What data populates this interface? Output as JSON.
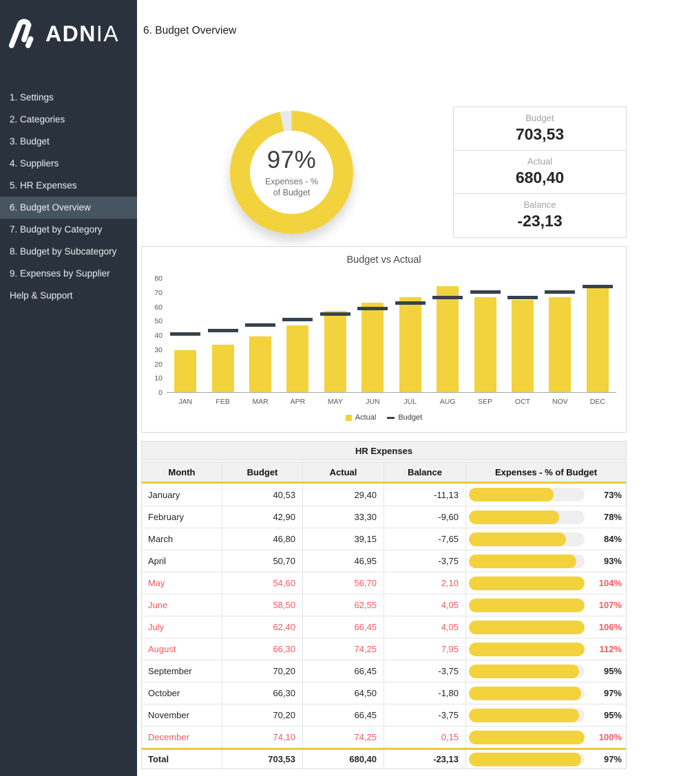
{
  "app": {
    "logo_bold": "ADN",
    "logo_light": "IA",
    "title": "6. Budget Overview"
  },
  "sidebar": {
    "items": [
      {
        "label": "1. Settings",
        "active": false
      },
      {
        "label": "2. Categories",
        "active": false
      },
      {
        "label": "3. Budget",
        "active": false
      },
      {
        "label": "4. Suppliers",
        "active": false
      },
      {
        "label": "5. HR Expenses",
        "active": false
      },
      {
        "label": "6. Budget Overview",
        "active": true
      },
      {
        "label": "7. Budget by Category",
        "active": false
      },
      {
        "label": "8. Budget by Subcategory",
        "active": false
      },
      {
        "label": "9. Expenses by Supplier",
        "active": false
      },
      {
        "label": "Help & Support",
        "active": false
      }
    ]
  },
  "donut": {
    "percent_label": "97%",
    "value": 97,
    "caption_line1": "Expenses - %",
    "caption_line2": "of Budget",
    "fill_color": "#F2D33D",
    "track_color": "#E9E9E9"
  },
  "kpis": [
    {
      "label": "Budget",
      "value": "703,53"
    },
    {
      "label": "Actual",
      "value": "680,40"
    },
    {
      "label": "Balance",
      "value": "-23,13"
    }
  ],
  "chart_data": {
    "type": "bar",
    "title": "Budget vs Actual",
    "categories": [
      "JAN",
      "FEB",
      "MAR",
      "APR",
      "MAY",
      "JUN",
      "JUL",
      "AUG",
      "SEP",
      "OCT",
      "NOV",
      "DEC"
    ],
    "series": [
      {
        "name": "Actual",
        "style": "column",
        "color": "#F2D33D",
        "values": [
          29.4,
          33.3,
          39.15,
          46.95,
          56.7,
          62.55,
          66.45,
          74.25,
          66.45,
          64.5,
          66.45,
          74.25
        ]
      },
      {
        "name": "Budget",
        "style": "dash-marker",
        "color": "#36424D",
        "values": [
          40.53,
          42.9,
          46.8,
          50.7,
          54.6,
          58.5,
          62.4,
          66.3,
          70.2,
          66.3,
          70.2,
          74.1
        ]
      }
    ],
    "ylim": [
      0,
      80
    ],
    "yticks": [
      0,
      10,
      20,
      30,
      40,
      50,
      60,
      70,
      80
    ],
    "grid": false,
    "legend_position": "bottom"
  },
  "table": {
    "title": "HR Expenses",
    "columns": [
      "Month",
      "Budget",
      "Actual",
      "Balance",
      "Expenses - % of Budget"
    ],
    "rows": [
      {
        "month": "January",
        "budget": "40,53",
        "actual": "29,40",
        "balance": "-11,13",
        "pct_label": "73%",
        "pct_value": 73,
        "alert": false
      },
      {
        "month": "February",
        "budget": "42,90",
        "actual": "33,30",
        "balance": "-9,60",
        "pct_label": "78%",
        "pct_value": 78,
        "alert": false
      },
      {
        "month": "March",
        "budget": "46,80",
        "actual": "39,15",
        "balance": "-7,65",
        "pct_label": "84%",
        "pct_value": 84,
        "alert": false
      },
      {
        "month": "April",
        "budget": "50,70",
        "actual": "46,95",
        "balance": "-3,75",
        "pct_label": "93%",
        "pct_value": 93,
        "alert": false
      },
      {
        "month": "May",
        "budget": "54,60",
        "actual": "56,70",
        "balance": "2,10",
        "pct_label": "104%",
        "pct_value": 104,
        "alert": true
      },
      {
        "month": "June",
        "budget": "58,50",
        "actual": "62,55",
        "balance": "4,05",
        "pct_label": "107%",
        "pct_value": 107,
        "alert": true
      },
      {
        "month": "July",
        "budget": "62,40",
        "actual": "66,45",
        "balance": "4,05",
        "pct_label": "106%",
        "pct_value": 106,
        "alert": true
      },
      {
        "month": "August",
        "budget": "66,30",
        "actual": "74,25",
        "balance": "7,95",
        "pct_label": "112%",
        "pct_value": 112,
        "alert": true
      },
      {
        "month": "September",
        "budget": "70,20",
        "actual": "66,45",
        "balance": "-3,75",
        "pct_label": "95%",
        "pct_value": 95,
        "alert": false
      },
      {
        "month": "October",
        "budget": "66,30",
        "actual": "64,50",
        "balance": "-1,80",
        "pct_label": "97%",
        "pct_value": 97,
        "alert": false
      },
      {
        "month": "November",
        "budget": "70,20",
        "actual": "66,45",
        "balance": "-3,75",
        "pct_label": "95%",
        "pct_value": 95,
        "alert": false
      },
      {
        "month": "December",
        "budget": "74,10",
        "actual": "74,25",
        "balance": "0,15",
        "pct_label": "100%",
        "pct_value": 100,
        "alert": true
      }
    ],
    "total": {
      "month": "Total",
      "budget": "703,53",
      "actual": "680,40",
      "balance": "-23,13",
      "pct_label": "97%",
      "pct_value": 97
    }
  },
  "colors": {
    "accent_yellow": "#F2D33D",
    "header_rule_yellow": "#EFC93C",
    "sidebar_bg": "#2A333D",
    "sidebar_active_bg": "#475562",
    "dark_marker": "#36424D",
    "alert_red": "#F4595F",
    "border_gray": "#D9D9D9"
  }
}
